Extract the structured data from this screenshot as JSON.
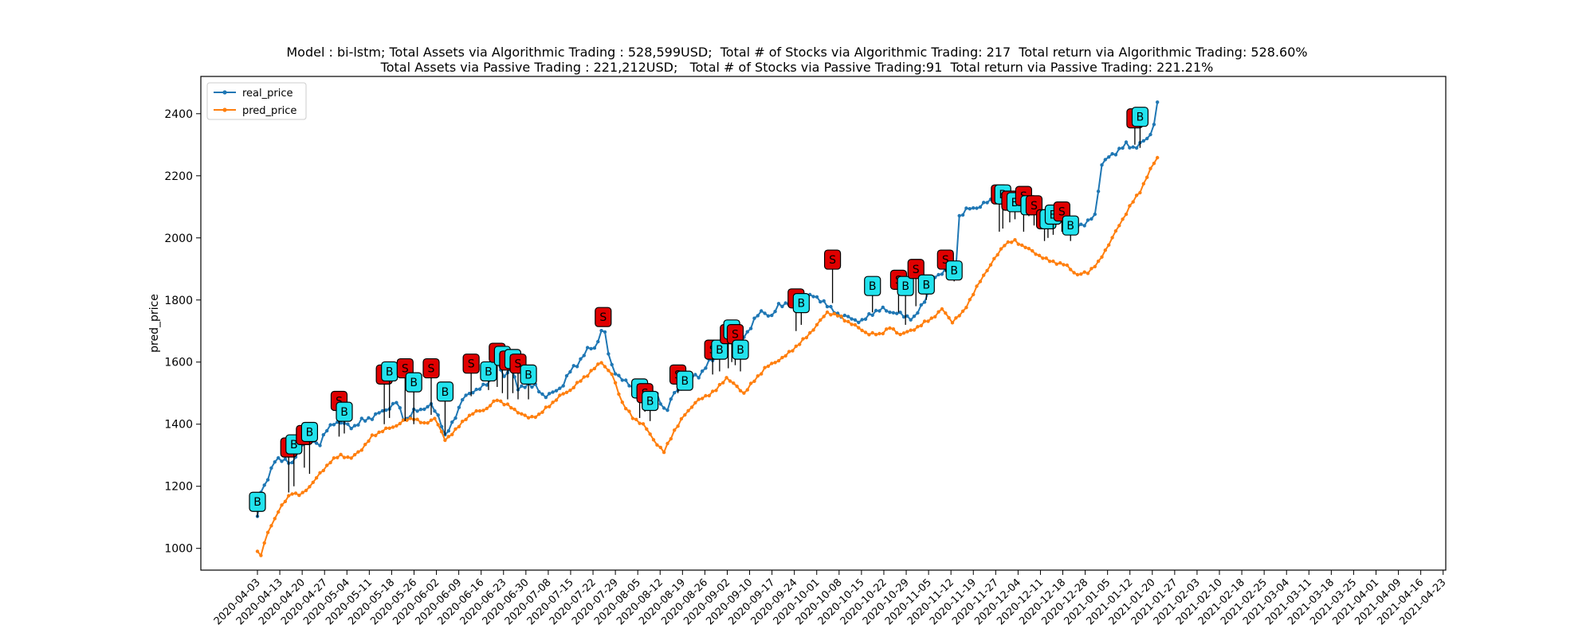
{
  "chart_data": {
    "type": "line",
    "title_lines": [
      "Model : bi-lstm; Total Assets via Algorithmic Trading : 528,599USD;  Total # of Stocks via Algorithmic Trading: 217  Total return via Algorithmic Trading: 528.60%",
      "Total Assets via Passive Trading : 221,212USD;   Total # of Stocks via Passive Trading:91  Total return via Passive Trading: 221.21%"
    ],
    "xlabel": "",
    "ylabel": "pred_price",
    "ylim": [
      930,
      2520
    ],
    "yticks": [
      1000,
      1200,
      1400,
      1600,
      1800,
      2000,
      2200,
      2400
    ],
    "legend_position": "top-left",
    "grid": false,
    "xtick_labels": [
      "2020-04-03",
      "2020-04-13",
      "2020-04-20",
      "2020-04-27",
      "2020-05-04",
      "2020-05-11",
      "2020-05-18",
      "2020-05-26",
      "2020-06-02",
      "2020-06-09",
      "2020-06-16",
      "2020-06-23",
      "2020-06-30",
      "2020-07-08",
      "2020-07-15",
      "2020-07-22",
      "2020-07-29",
      "2020-08-05",
      "2020-08-12",
      "2020-08-19",
      "2020-08-26",
      "2020-09-02",
      "2020-09-10",
      "2020-09-17",
      "2020-09-24",
      "2020-10-01",
      "2020-10-08",
      "2020-10-15",
      "2020-10-22",
      "2020-10-29",
      "2020-11-05",
      "2020-11-12",
      "2020-11-19",
      "2020-11-27",
      "2020-12-04",
      "2020-12-11",
      "2020-12-18",
      "2020-12-28",
      "2021-01-05",
      "2021-01-12",
      "2021-01-20",
      "2021-01-27",
      "2021-02-03",
      "2021-02-10",
      "2021-02-18",
      "2021-02-25",
      "2021-03-04",
      "2021-03-11",
      "2021-03-18",
      "2021-03-25",
      "2021-04-01",
      "2021-04-09",
      "2021-04-16",
      "2021-04-23"
    ],
    "series": [
      {
        "name": "real_price",
        "color": "#1f77b4",
        "anchors": [
          [
            0,
            1100
          ],
          [
            2,
            1180
          ],
          [
            5,
            1215
          ],
          [
            10,
            1280
          ],
          [
            15,
            1290
          ],
          [
            20,
            1270
          ],
          [
            25,
            1330
          ],
          [
            30,
            1360
          ],
          [
            35,
            1330
          ],
          [
            40,
            1380
          ],
          [
            45,
            1410
          ],
          [
            50,
            1400
          ],
          [
            55,
            1390
          ],
          [
            60,
            1410
          ],
          [
            65,
            1420
          ],
          [
            70,
            1435
          ],
          [
            75,
            1450
          ],
          [
            80,
            1470
          ],
          [
            85,
            1410
          ],
          [
            90,
            1440
          ],
          [
            95,
            1450
          ],
          [
            100,
            1460
          ],
          [
            105,
            1420
          ],
          [
            108,
            1360
          ],
          [
            112,
            1400
          ],
          [
            118,
            1480
          ],
          [
            125,
            1510
          ],
          [
            130,
            1520
          ],
          [
            134,
            1540
          ],
          [
            138,
            1600
          ],
          [
            142,
            1550
          ],
          [
            146,
            1590
          ],
          [
            150,
            1510
          ],
          [
            155,
            1530
          ],
          [
            160,
            1520
          ],
          [
            165,
            1490
          ],
          [
            170,
            1500
          ],
          [
            175,
            1520
          ],
          [
            180,
            1570
          ],
          [
            185,
            1600
          ],
          [
            190,
            1640
          ],
          [
            195,
            1650
          ],
          [
            199,
            1720
          ],
          [
            203,
            1600
          ],
          [
            208,
            1550
          ],
          [
            214,
            1530
          ],
          [
            220,
            1500
          ],
          [
            226,
            1460
          ],
          [
            230,
            1490
          ],
          [
            235,
            1440
          ],
          [
            240,
            1500
          ],
          [
            245,
            1520
          ],
          [
            250,
            1550
          ],
          [
            255,
            1560
          ],
          [
            260,
            1600
          ],
          [
            265,
            1620
          ],
          [
            270,
            1660
          ],
          [
            275,
            1690
          ],
          [
            281,
            1680
          ],
          [
            286,
            1740
          ],
          [
            290,
            1760
          ],
          [
            296,
            1750
          ],
          [
            300,
            1780
          ],
          [
            305,
            1790
          ],
          [
            310,
            1800
          ],
          [
            315,
            1820
          ],
          [
            320,
            1810
          ],
          [
            325,
            1800
          ],
          [
            330,
            1770
          ],
          [
            336,
            1750
          ],
          [
            342,
            1740
          ],
          [
            348,
            1730
          ],
          [
            354,
            1760
          ],
          [
            360,
            1770
          ],
          [
            366,
            1760
          ],
          [
            372,
            1750
          ],
          [
            378,
            1740
          ],
          [
            384,
            1800
          ],
          [
            390,
            1870
          ],
          [
            396,
            1900
          ],
          [
            402,
            1910
          ],
          [
            404,
            2070
          ],
          [
            408,
            2090
          ],
          [
            415,
            2100
          ],
          [
            422,
            2120
          ],
          [
            428,
            2130
          ],
          [
            433,
            2140
          ],
          [
            438,
            2120
          ],
          [
            443,
            2110
          ],
          [
            448,
            2090
          ],
          [
            453,
            2080
          ],
          [
            458,
            2070
          ],
          [
            463,
            2060
          ],
          [
            468,
            2050
          ],
          [
            473,
            2040
          ],
          [
            478,
            2050
          ],
          [
            483,
            2080
          ],
          [
            485,
            2230
          ],
          [
            490,
            2260
          ],
          [
            495,
            2280
          ],
          [
            500,
            2300
          ],
          [
            505,
            2290
          ],
          [
            510,
            2310
          ],
          [
            515,
            2340
          ],
          [
            518,
            2430
          ]
        ]
      },
      {
        "name": "pred_price",
        "color": "#ff7f0e",
        "anchors": [
          [
            0,
            990
          ],
          [
            2,
            980
          ],
          [
            6,
            1050
          ],
          [
            12,
            1120
          ],
          [
            17,
            1160
          ],
          [
            20,
            1180
          ],
          [
            25,
            1170
          ],
          [
            30,
            1200
          ],
          [
            36,
            1240
          ],
          [
            42,
            1280
          ],
          [
            48,
            1300
          ],
          [
            54,
            1290
          ],
          [
            60,
            1320
          ],
          [
            66,
            1360
          ],
          [
            72,
            1380
          ],
          [
            78,
            1390
          ],
          [
            84,
            1410
          ],
          [
            90,
            1420
          ],
          [
            96,
            1400
          ],
          [
            102,
            1420
          ],
          [
            108,
            1350
          ],
          [
            114,
            1380
          ],
          [
            120,
            1420
          ],
          [
            126,
            1440
          ],
          [
            132,
            1450
          ],
          [
            138,
            1480
          ],
          [
            144,
            1460
          ],
          [
            150,
            1440
          ],
          [
            156,
            1420
          ],
          [
            162,
            1430
          ],
          [
            168,
            1460
          ],
          [
            174,
            1490
          ],
          [
            180,
            1510
          ],
          [
            186,
            1540
          ],
          [
            192,
            1570
          ],
          [
            198,
            1600
          ],
          [
            204,
            1560
          ],
          [
            210,
            1470
          ],
          [
            216,
            1420
          ],
          [
            222,
            1400
          ],
          [
            228,
            1350
          ],
          [
            234,
            1310
          ],
          [
            240,
            1380
          ],
          [
            246,
            1430
          ],
          [
            252,
            1470
          ],
          [
            258,
            1490
          ],
          [
            264,
            1510
          ],
          [
            270,
            1550
          ],
          [
            274,
            1530
          ],
          [
            280,
            1500
          ],
          [
            286,
            1540
          ],
          [
            292,
            1580
          ],
          [
            298,
            1600
          ],
          [
            304,
            1620
          ],
          [
            310,
            1650
          ],
          [
            316,
            1680
          ],
          [
            322,
            1720
          ],
          [
            328,
            1760
          ],
          [
            334,
            1750
          ],
          [
            340,
            1730
          ],
          [
            346,
            1710
          ],
          [
            352,
            1690
          ],
          [
            358,
            1690
          ],
          [
            364,
            1710
          ],
          [
            370,
            1690
          ],
          [
            376,
            1700
          ],
          [
            382,
            1720
          ],
          [
            388,
            1740
          ],
          [
            394,
            1770
          ],
          [
            400,
            1730
          ],
          [
            406,
            1760
          ],
          [
            412,
            1820
          ],
          [
            418,
            1880
          ],
          [
            424,
            1930
          ],
          [
            430,
            1980
          ],
          [
            436,
            1990
          ],
          [
            442,
            1970
          ],
          [
            448,
            1950
          ],
          [
            454,
            1930
          ],
          [
            460,
            1920
          ],
          [
            466,
            1910
          ],
          [
            472,
            1880
          ],
          [
            478,
            1890
          ],
          [
            484,
            1920
          ],
          [
            490,
            1980
          ],
          [
            496,
            2040
          ],
          [
            502,
            2100
          ],
          [
            508,
            2150
          ],
          [
            514,
            2220
          ],
          [
            518,
            2260
          ]
        ]
      }
    ],
    "signals": [
      {
        "x": 0,
        "y": 1150,
        "price": 1100,
        "label": "B"
      },
      {
        "x": 18,
        "y": 1325,
        "price": 1180,
        "label": "S"
      },
      {
        "x": 21,
        "y": 1335,
        "price": 1200,
        "label": "B"
      },
      {
        "x": 27,
        "y": 1365,
        "price": 1260,
        "label": "S"
      },
      {
        "x": 30,
        "y": 1375,
        "price": 1240,
        "label": "B"
      },
      {
        "x": 47,
        "y": 1475,
        "price": 1360,
        "label": "S"
      },
      {
        "x": 50,
        "y": 1440,
        "price": 1370,
        "label": "B"
      },
      {
        "x": 73,
        "y": 1560,
        "price": 1400,
        "label": "S"
      },
      {
        "x": 76,
        "y": 1570,
        "price": 1420,
        "label": "B"
      },
      {
        "x": 85,
        "y": 1580,
        "price": 1410,
        "label": "S"
      },
      {
        "x": 90,
        "y": 1535,
        "price": 1400,
        "label": "B"
      },
      {
        "x": 100,
        "y": 1580,
        "price": 1430,
        "label": "S"
      },
      {
        "x": 108,
        "y": 1505,
        "price": 1365,
        "label": "B"
      },
      {
        "x": 123,
        "y": 1595,
        "price": 1490,
        "label": "S"
      },
      {
        "x": 133,
        "y": 1570,
        "price": 1510,
        "label": "B"
      },
      {
        "x": 138,
        "y": 1630,
        "price": 1520,
        "label": "S"
      },
      {
        "x": 141,
        "y": 1620,
        "price": 1500,
        "label": "B"
      },
      {
        "x": 144,
        "y": 1605,
        "price": 1480,
        "label": "S"
      },
      {
        "x": 147,
        "y": 1610,
        "price": 1500,
        "label": "B"
      },
      {
        "x": 150,
        "y": 1595,
        "price": 1480,
        "label": "S"
      },
      {
        "x": 156,
        "y": 1560,
        "price": 1480,
        "label": "B"
      },
      {
        "x": 199,
        "y": 1745,
        "price": 1720,
        "label": "S"
      },
      {
        "x": 220,
        "y": 1515,
        "price": 1420,
        "label": "B"
      },
      {
        "x": 223,
        "y": 1500,
        "price": 1440,
        "label": "S"
      },
      {
        "x": 226,
        "y": 1475,
        "price": 1410,
        "label": "B"
      },
      {
        "x": 242,
        "y": 1560,
        "price": 1500,
        "label": "S"
      },
      {
        "x": 246,
        "y": 1540,
        "price": 1510,
        "label": "B"
      },
      {
        "x": 262,
        "y": 1640,
        "price": 1560,
        "label": "S"
      },
      {
        "x": 266,
        "y": 1640,
        "price": 1570,
        "label": "B"
      },
      {
        "x": 271,
        "y": 1690,
        "price": 1580,
        "label": "S"
      },
      {
        "x": 273,
        "y": 1705,
        "price": 1600,
        "label": "B"
      },
      {
        "x": 275,
        "y": 1690,
        "price": 1590,
        "label": "S"
      },
      {
        "x": 278,
        "y": 1640,
        "price": 1570,
        "label": "B"
      },
      {
        "x": 310,
        "y": 1805,
        "price": 1700,
        "label": "S"
      },
      {
        "x": 313,
        "y": 1790,
        "price": 1720,
        "label": "B"
      },
      {
        "x": 331,
        "y": 1930,
        "price": 1790,
        "label": "S"
      },
      {
        "x": 354,
        "y": 1845,
        "price": 1760,
        "label": "B"
      },
      {
        "x": 369,
        "y": 1865,
        "price": 1760,
        "label": "S"
      },
      {
        "x": 373,
        "y": 1845,
        "price": 1720,
        "label": "B"
      },
      {
        "x": 379,
        "y": 1900,
        "price": 1780,
        "label": "S"
      },
      {
        "x": 385,
        "y": 1850,
        "price": 1800,
        "label": "B"
      },
      {
        "x": 396,
        "y": 1930,
        "price": 1890,
        "label": "S"
      },
      {
        "x": 401,
        "y": 1895,
        "price": 1860,
        "label": "B"
      },
      {
        "x": 427,
        "y": 2140,
        "price": 2020,
        "label": "S"
      },
      {
        "x": 429,
        "y": 2140,
        "price": 2030,
        "label": "B"
      },
      {
        "x": 433,
        "y": 2120,
        "price": 2050,
        "label": "S"
      },
      {
        "x": 436,
        "y": 2115,
        "price": 2060,
        "label": "B"
      },
      {
        "x": 441,
        "y": 2135,
        "price": 2020,
        "label": "S"
      },
      {
        "x": 444,
        "y": 2105,
        "price": 2070,
        "label": "B"
      },
      {
        "x": 447,
        "y": 2105,
        "price": 2040,
        "label": "S"
      },
      {
        "x": 453,
        "y": 2060,
        "price": 1990,
        "label": "S"
      },
      {
        "x": 455,
        "y": 2060,
        "price": 2000,
        "label": "B"
      },
      {
        "x": 458,
        "y": 2075,
        "price": 2010,
        "label": "B"
      },
      {
        "x": 463,
        "y": 2085,
        "price": 2020,
        "label": "S"
      },
      {
        "x": 468,
        "y": 2040,
        "price": 1990,
        "label": "B"
      },
      {
        "x": 505,
        "y": 2385,
        "price": 2300,
        "label": "S"
      },
      {
        "x": 508,
        "y": 2390,
        "price": 2290,
        "label": "B"
      }
    ]
  }
}
